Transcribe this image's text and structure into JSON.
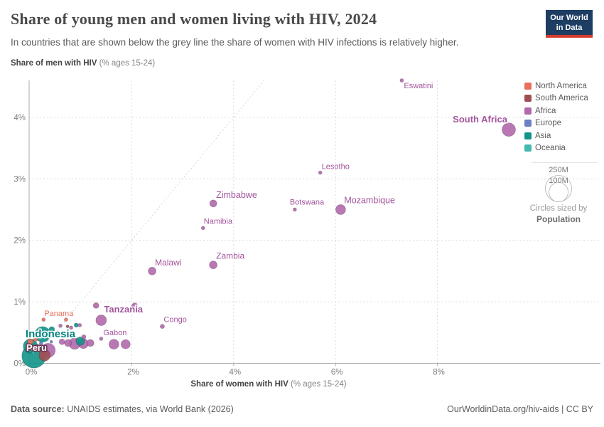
{
  "header": {
    "title": "Share of young men and women living with HIV, 2024",
    "subtitle": "In countries that are shown below the grey line the share of women with HIV infections is relatively higher.",
    "logo_line1": "Our World",
    "logo_line2": "in Data"
  },
  "legend": {
    "items": [
      {
        "label": "North America",
        "color": "#e8705c"
      },
      {
        "label": "South America",
        "color": "#9e4e52"
      },
      {
        "label": "Africa",
        "color": "#b168ac"
      },
      {
        "label": "Europe",
        "color": "#6c7ec4"
      },
      {
        "label": "Asia",
        "color": "#12948a"
      },
      {
        "label": "Oceania",
        "color": "#43b9af"
      }
    ],
    "size_legend": {
      "big_label": "250M",
      "small_label": "100M",
      "caption_line1": "Circles sized by",
      "caption_line2": "Population"
    }
  },
  "footer": {
    "source_prefix": "Data source:",
    "source_text": " UNAIDS estimates, via World Bank (2026)",
    "link_text": "OurWorldinData.org/hiv-aids | CC BY"
  },
  "chart_data": {
    "type": "scatter",
    "title": "Share of young men and women living with HIV, 2024",
    "xlabel_main": "Share of women with HIV",
    "xlabel_unit": " (% ages 15-24)",
    "ylabel_main": "Share of men with HIV",
    "ylabel_unit": " (% ages 15-24)",
    "xlim": [
      0,
      11.2
    ],
    "ylim": [
      0,
      4.6
    ],
    "grid": true,
    "identity_line": true,
    "legend_position": "right",
    "size_by": "Population",
    "x_ticks": [
      {
        "v": 0,
        "label": "0%"
      },
      {
        "v": 2,
        "label": "2%"
      },
      {
        "v": 4,
        "label": "4%"
      },
      {
        "v": 6,
        "label": "6%"
      },
      {
        "v": 8,
        "label": "8%"
      }
    ],
    "y_ticks": [
      {
        "v": 0,
        "label": "0%"
      },
      {
        "v": 1,
        "label": "1%"
      },
      {
        "v": 2,
        "label": "2%"
      },
      {
        "v": 3,
        "label": "3%"
      },
      {
        "v": 4,
        "label": "4%"
      }
    ],
    "series": [
      {
        "name": "Africa",
        "key": "africa",
        "color": "#b168ac",
        "label_color": "#a2559c",
        "points": [
          {
            "name": "Eswatini",
            "x": 7.3,
            "y": 4.6,
            "r": 2.5,
            "label": {
              "dx": 3,
              "dy": 11,
              "anchor": "start",
              "size": 11
            }
          },
          {
            "name": "South Africa",
            "x": 9.4,
            "y": 3.8,
            "r": 9.5,
            "label": {
              "dx": -2,
              "dy": -10,
              "anchor": "end",
              "size": 13
            }
          },
          {
            "name": "Lesotho",
            "x": 5.7,
            "y": 3.1,
            "r": 2.5,
            "label": {
              "dx": 2,
              "dy": -5,
              "anchor": "start",
              "size": 11
            }
          },
          {
            "name": "Zimbabwe",
            "x": 3.6,
            "y": 2.6,
            "r": 5,
            "label": {
              "dx": 4,
              "dy": -8,
              "anchor": "start",
              "size": 12.5
            }
          },
          {
            "name": "Botswana",
            "x": 5.2,
            "y": 2.5,
            "r": 2.5,
            "label": {
              "dx": -7,
              "dy": -7,
              "anchor": "start",
              "size": 11
            }
          },
          {
            "name": "Mozambique",
            "x": 6.1,
            "y": 2.5,
            "r": 7,
            "label": {
              "dx": 5,
              "dy": -9,
              "anchor": "start",
              "size": 12.5
            }
          },
          {
            "name": "Namibia",
            "x": 3.4,
            "y": 2.2,
            "r": 2.5,
            "label": {
              "dx": 1,
              "dy": -6,
              "anchor": "start",
              "size": 11
            }
          },
          {
            "name": "Zambia",
            "x": 3.6,
            "y": 1.6,
            "r": 5.5,
            "label": {
              "dx": 4,
              "dy": -9,
              "anchor": "start",
              "size": 12
            }
          },
          {
            "name": "Malawi",
            "x": 2.4,
            "y": 1.5,
            "r": 5.5,
            "label": {
              "dx": 4,
              "dy": -8,
              "anchor": "start",
              "size": 12
            }
          },
          {
            "name": "Tanzania",
            "x": 1.4,
            "y": 0.7,
            "r": 7.5,
            "label": {
              "dx": 4,
              "dy": -11,
              "anchor": "start",
              "size": 13
            }
          },
          {
            "name": "Congo",
            "x": 2.6,
            "y": 0.6,
            "r": 3,
            "label": {
              "dx": 2,
              "dy": -6,
              "anchor": "start",
              "size": 11
            }
          },
          {
            "name": "Gabon",
            "x": 1.4,
            "y": 0.4,
            "r": 2.5,
            "label": {
              "dx": 3,
              "dy": -5,
              "anchor": "start",
              "size": 11
            }
          },
          {
            "x": 1.3,
            "y": 0.94,
            "r": 4
          },
          {
            "x": 2.06,
            "y": 0.93,
            "r": 4.5
          },
          {
            "x": 0.36,
            "y": 0.21,
            "r": 10
          },
          {
            "x": 0.63,
            "y": 0.35,
            "r": 4
          },
          {
            "x": 0.75,
            "y": 0.33,
            "r": 5
          },
          {
            "x": 0.88,
            "y": 0.32,
            "r": 8
          },
          {
            "x": 1.05,
            "y": 0.32,
            "r": 7
          },
          {
            "x": 1.19,
            "y": 0.33,
            "r": 5
          },
          {
            "x": 1.65,
            "y": 0.31,
            "r": 7
          },
          {
            "x": 1.88,
            "y": 0.31,
            "r": 6.5
          },
          {
            "x": 0.6,
            "y": 0.61,
            "r": 2.5
          },
          {
            "x": 0.81,
            "y": 0.58,
            "r": 2.5
          },
          {
            "x": 0.98,
            "y": 0.62,
            "r": 2.5
          },
          {
            "x": 1.06,
            "y": 0.43,
            "r": 3
          }
        ]
      },
      {
        "name": "North America",
        "key": "north-america",
        "color": "#e8705c",
        "label_color": "#e56e5a",
        "points": [
          {
            "name": "Panama",
            "x": 0.27,
            "y": 0.71,
            "r": 2.5,
            "label": {
              "dx": 1,
              "dy": -5,
              "anchor": "start",
              "size": 11
            }
          },
          {
            "x": 0.71,
            "y": 0.71,
            "r": 2.5
          },
          {
            "x": 0.01,
            "y": 0.35,
            "r": 4
          },
          {
            "x": 0.04,
            "y": 0.24,
            "r": 3
          },
          {
            "x": 0.11,
            "y": 0.39,
            "r": 3
          }
        ]
      },
      {
        "name": "South America",
        "key": "south-america",
        "color": "#9e4e52",
        "label_color": "#9e4e52",
        "points": [
          {
            "name": "Peru",
            "x": 0.14,
            "y": 0.27,
            "r": 3.5,
            "label": {
              "dx": -15,
              "dy": 6,
              "anchor": "start",
              "size": 13,
              "bold": true,
              "fill": "#ffffff",
              "halo": "#6d3450"
            }
          },
          {
            "x": 0.29,
            "y": 0.13,
            "r": 8
          },
          {
            "x": 0.74,
            "y": 0.6,
            "r": 2
          }
        ]
      },
      {
        "name": "Asia",
        "key": "asia",
        "color": "#12948a",
        "label_color": "#00847e",
        "points": [
          {
            "name": "Indonesia",
            "x": 0.25,
            "y": 0.47,
            "r": 11,
            "label": {
              "dx": -24,
              "dy": 4,
              "anchor": "start",
              "size": 15,
              "fill": "#00847e"
            }
          },
          {
            "x": 0.08,
            "y": 0.12,
            "r": 17
          },
          {
            "x": 0.01,
            "y": 0.28,
            "r": 10
          },
          {
            "x": 0.99,
            "y": 0.36,
            "r": 6
          },
          {
            "x": 0.43,
            "y": 0.55,
            "r": 4
          },
          {
            "x": 0.91,
            "y": 0.62,
            "r": 3
          },
          {
            "x": 0.56,
            "y": 0.46,
            "r": 3
          }
        ]
      },
      {
        "name": "Europe",
        "key": "europe",
        "color": "#6c7ec4",
        "label_color": "#6c7ec4",
        "points": [
          {
            "x": 0.22,
            "y": 0.32,
            "r": 2.5
          },
          {
            "x": 0.42,
            "y": 0.35,
            "r": 2
          }
        ]
      },
      {
        "name": "Oceania",
        "key": "oceania",
        "color": "#43b9af",
        "label_color": "#43b9af",
        "points": [
          {
            "x": 0.07,
            "y": 0.17,
            "r": 2
          }
        ]
      }
    ]
  }
}
